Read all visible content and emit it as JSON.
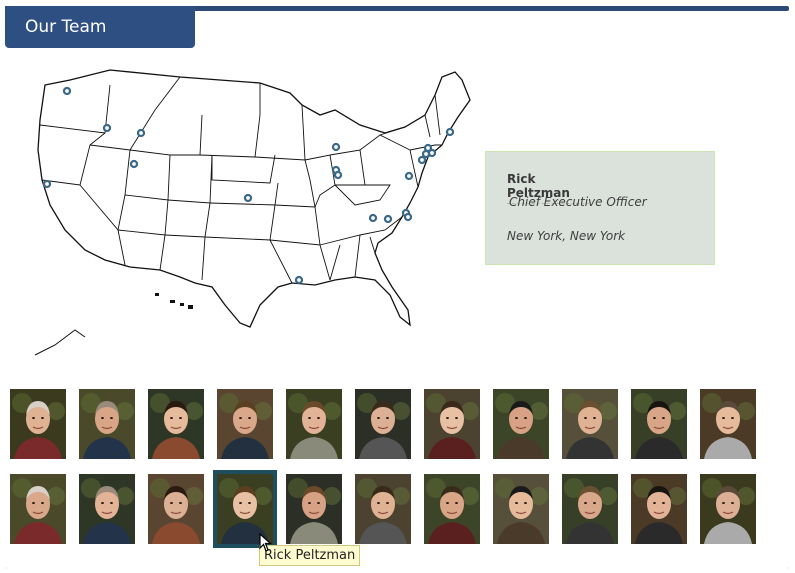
{
  "header": {
    "title": "Our Team"
  },
  "colors": {
    "accent": "#2e4f82",
    "selected_border": "#1f4e5e",
    "card_bg": "#dbe2dc"
  },
  "selected_member": {
    "name": "Rick Peltzman",
    "title": "Chief Executive Officer",
    "location": "New York, New York"
  },
  "map": {
    "icon": "us-map",
    "marker_icon": "office-location-marker"
  },
  "team_photos": {
    "rows": 2,
    "per_row": 11,
    "selected_index": 14,
    "icon": "team-member-photo"
  },
  "tooltip": {
    "text": "Rick Peltzman"
  }
}
